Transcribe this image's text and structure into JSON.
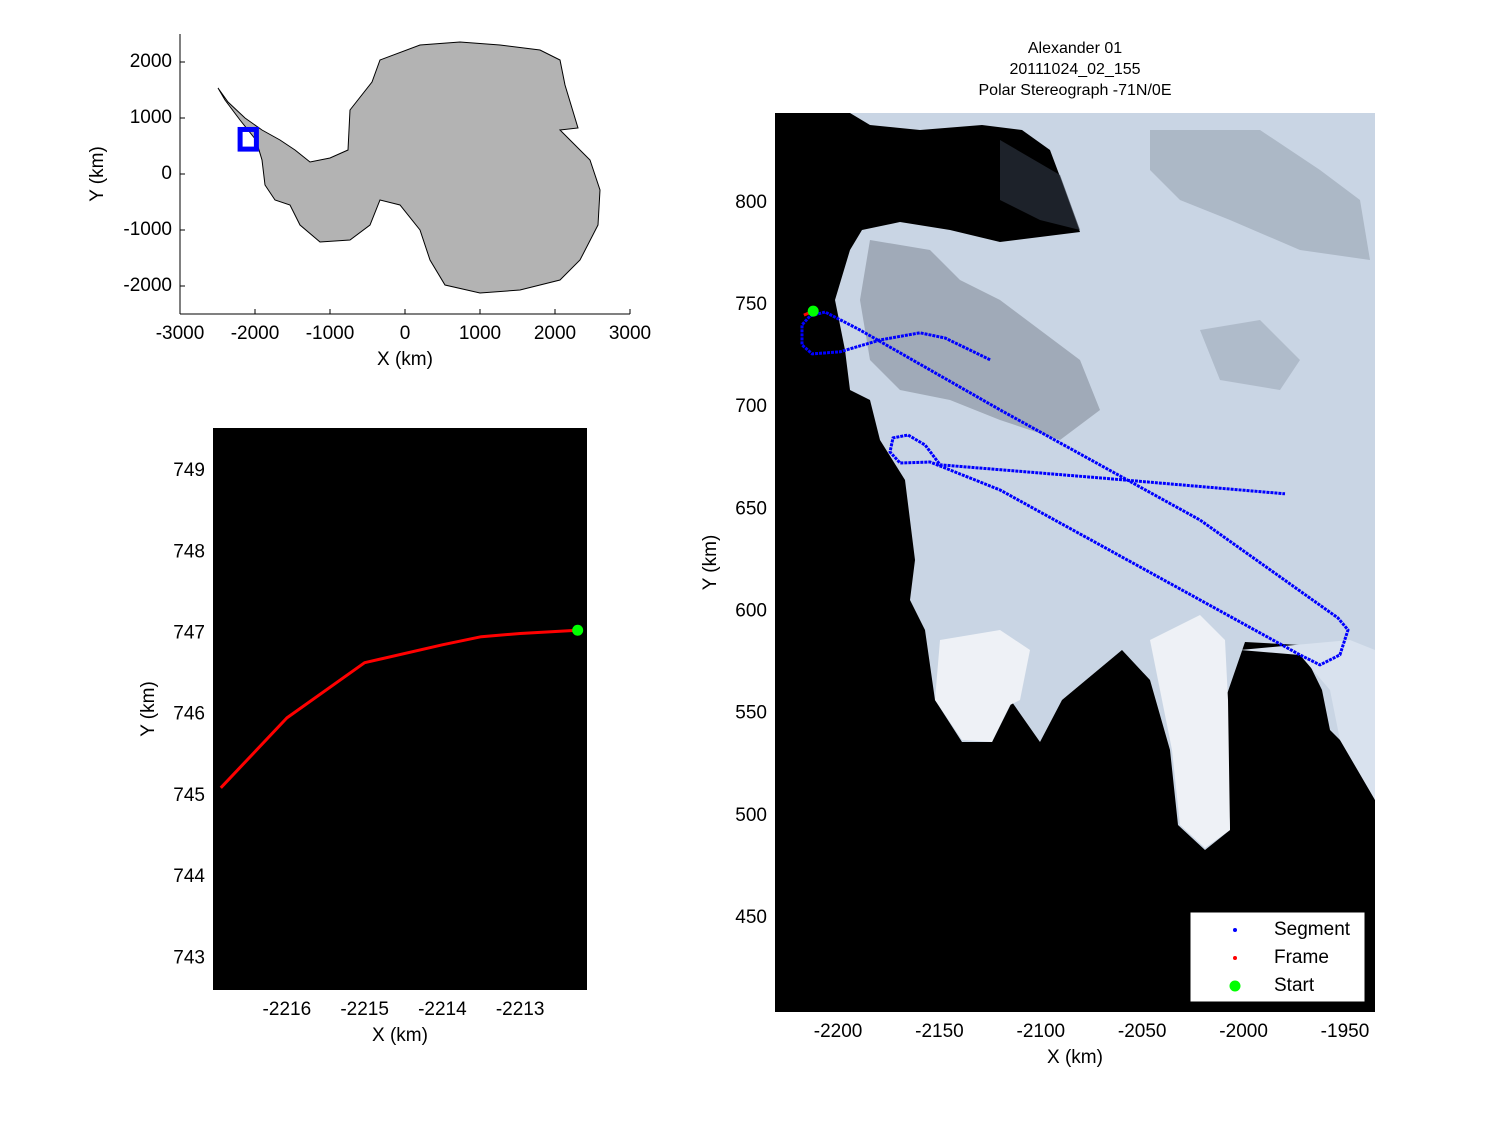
{
  "chart_data": [
    {
      "type": "map",
      "xlabel": "X (km)",
      "ylabel": "Y (km)",
      "xlim": [
        -3000,
        3000
      ],
      "ylim": [
        -2500,
        2500
      ],
      "xticks": [
        -3000,
        -2000,
        -1000,
        0,
        1000,
        2000,
        3000
      ],
      "yticks": [
        -2000,
        -1000,
        0,
        1000,
        2000
      ],
      "region": {
        "x": [
          -2232,
          -1948
        ],
        "y": [
          400,
          840
        ],
        "color": "#0000ff"
      }
    },
    {
      "type": "line",
      "xlabel": "X (km)",
      "ylabel": "Y (km)",
      "xlim": [
        -2216.95,
        -2212.14
      ],
      "ylim": [
        742.61,
        749.53
      ],
      "xticks": [
        -2216,
        -2215,
        -2214,
        -2213
      ],
      "yticks": [
        743,
        744,
        745,
        746,
        747,
        748,
        749
      ],
      "background": "#000000",
      "series": [
        {
          "color": "#ff0000",
          "marker": "line",
          "x": [
            -2216.85,
            -2216.0,
            -2215.0,
            -2214.0,
            -2213.5,
            -2213.0,
            -2212.26
          ],
          "values": [
            745.1,
            745.96,
            746.64,
            746.86,
            746.96,
            747.0,
            747.04
          ]
        },
        {
          "color": "#00ff00",
          "marker": "circle",
          "x": [
            -2212.26
          ],
          "values": [
            747.04
          ]
        }
      ]
    },
    {
      "type": "line",
      "title": [
        "Alexander 01",
        "20111024_02_155",
        "Polar Stereograph -71N/0E"
      ],
      "xlabel": "X (km)",
      "ylabel": "Y (km)",
      "xlim": [
        -2231.1,
        -1935.2
      ],
      "ylim": [
        404,
        844
      ],
      "xticks": [
        -2200,
        -2150,
        -2100,
        -2050,
        -2000,
        -1950
      ],
      "yticks": [
        450,
        500,
        550,
        600,
        650,
        700,
        750,
        800
      ],
      "background": "#000000",
      "legend": "southeast",
      "series": [
        {
          "name": "Segment",
          "color": "#0000ff",
          "marker": "line",
          "x": [
            -2125.0,
            -2147.2,
            -2159.6,
            -2179.3,
            -2199.0,
            -2212.8,
            -2217.8,
            -2217.8,
            -2213.8,
            -2206.4,
            -2189.2,
            -2120.1,
            -2021.5,
            -1953.5,
            -1948.5,
            -1952.5,
            -1962.3,
            -1972.2,
            -2021.5,
            -2120.1,
            -2154.6,
            -2169.4,
            -2174.4,
            -2172.9,
            -2165.5,
            -2157.1,
            -2149.7,
            -2070.8,
            -1979.6
          ],
          "values": [
            723.2,
            733.9,
            736.4,
            732.9,
            727.1,
            726.1,
            730.5,
            740.3,
            744.7,
            746.6,
            737.8,
            698.7,
            644.8,
            596.9,
            591.0,
            578.8,
            573.9,
            578.8,
            605.7,
            659.5,
            673.2,
            672.7,
            678.1,
            685.0,
            686.4,
            681.5,
            671.8,
            665.4,
            657.6
          ]
        },
        {
          "name": "Frame",
          "color": "#ff0000",
          "marker": "line",
          "x": [
            -2216.85,
            -2212.26
          ],
          "values": [
            745.1,
            747.04
          ]
        },
        {
          "name": "Start",
          "color": "#00ff00",
          "marker": "circle",
          "x": [
            -2212.26
          ],
          "values": [
            747.04
          ]
        }
      ]
    }
  ]
}
